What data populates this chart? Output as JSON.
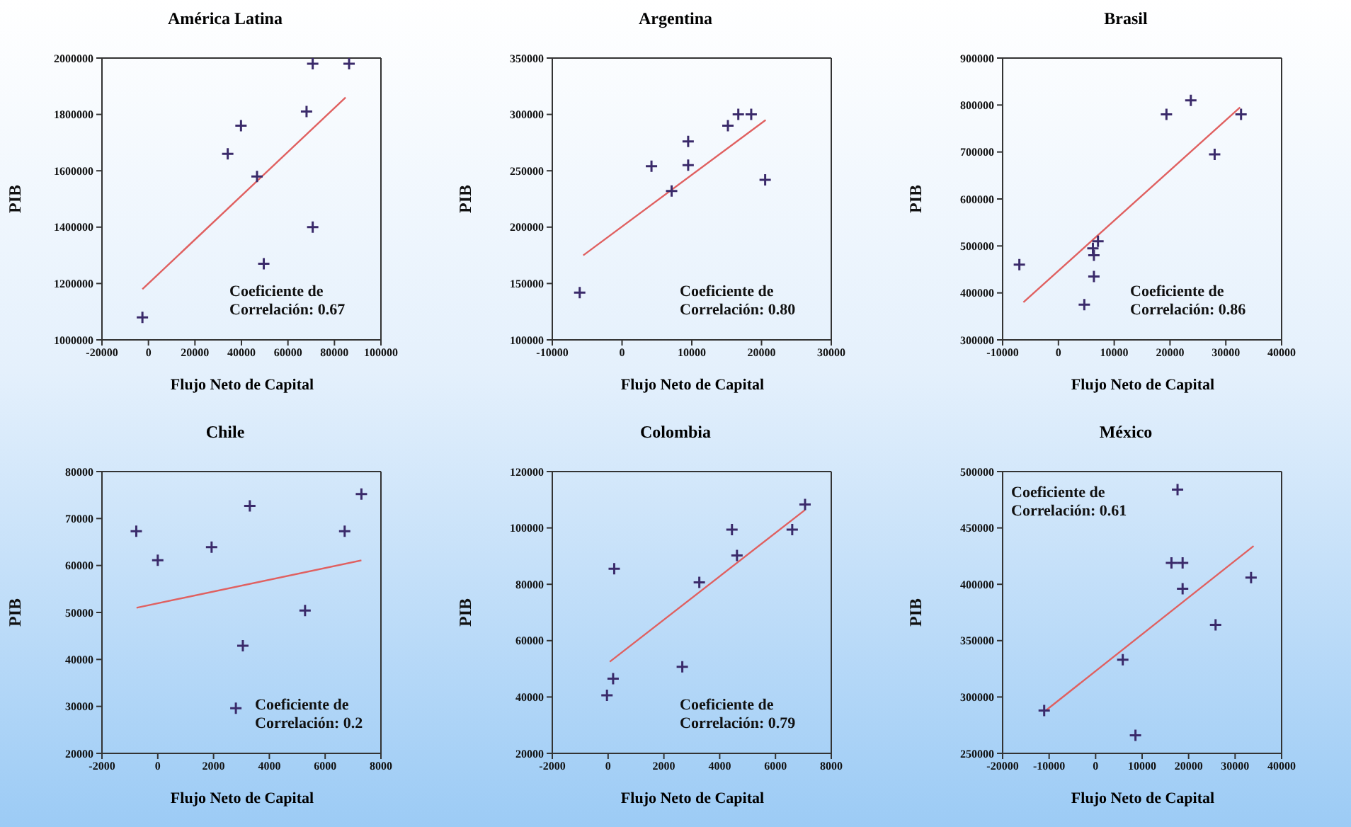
{
  "chart_data": [
    {
      "type": "scatter",
      "title": "América Latina",
      "xlabel": "Flujo Neto de Capital",
      "ylabel": "PIB",
      "xlim": [
        -20000,
        100000
      ],
      "xticks": [
        -20000,
        0,
        20000,
        40000,
        60000,
        80000,
        100000
      ],
      "ylim": [
        1000000,
        2000000
      ],
      "yticks": [
        1000000,
        1200000,
        1400000,
        1600000,
        1800000,
        2000000
      ],
      "annotations": [
        "Coeficiente de Correlación: 0.67"
      ],
      "series": [
        {
          "marker": "cross",
          "color": "#3a2a6a",
          "x": [
            -2600,
            49600,
            70650,
            34100,
            39800,
            46700,
            68000,
            70650,
            86300
          ],
          "values": [
            1080000,
            1270000,
            1400000,
            1660000,
            1760000,
            1580000,
            1810000,
            1980000,
            1980000
          ]
        },
        {
          "type": "line",
          "color": "#e06060",
          "x": [
            -2600,
            84800
          ],
          "values": [
            1180000,
            1860000
          ]
        }
      ]
    },
    {
      "type": "scatter",
      "title": "Argentina",
      "xlabel": "Flujo Neto de Capital",
      "ylabel": "PIB",
      "xlim": [
        -10000,
        30000
      ],
      "xticks": [
        -10000,
        0,
        10000,
        20000,
        30000
      ],
      "ylim": [
        100000,
        350000
      ],
      "yticks": [
        100000,
        150000,
        200000,
        250000,
        300000,
        350000
      ],
      "annotations": [
        "Coeficiente de Correlación: 0.80"
      ],
      "series": [
        {
          "marker": "cross",
          "color": "#3a2a6a",
          "x": [
            -6070,
            4220,
            7110,
            9480,
            9480,
            15180,
            16670,
            18520,
            20520
          ],
          "values": [
            142000,
            254000,
            232000,
            276000,
            255000,
            290000,
            300000,
            300000,
            242000
          ]
        },
        {
          "type": "line",
          "color": "#e06060",
          "x": [
            -5560,
            20590
          ],
          "values": [
            175000,
            295000
          ]
        }
      ]
    },
    {
      "type": "scatter",
      "title": "Brasil",
      "xlabel": "Flujo Neto de Capital",
      "ylabel": "PIB",
      "xlim": [
        -10000,
        40000
      ],
      "xticks": [
        -10000,
        0,
        10000,
        20000,
        30000,
        40000
      ],
      "ylim": [
        300000,
        900000
      ],
      "yticks": [
        300000,
        400000,
        500000,
        600000,
        700000,
        800000,
        900000
      ],
      "annotations": [
        "Coeficiente de Correlación: 0.86"
      ],
      "series": [
        {
          "marker": "cross",
          "color": "#3a2a6a",
          "x": [
            -7000,
            6360,
            7090,
            6180,
            6360,
            4640,
            19360,
            23730,
            28000,
            32730
          ],
          "values": [
            460000,
            480000,
            510000,
            495000,
            435000,
            375000,
            780000,
            810000,
            695000,
            780000
          ]
        },
        {
          "type": "line",
          "color": "#e06060",
          "x": [
            -6270,
            32550
          ],
          "values": [
            380000,
            795000
          ]
        }
      ]
    },
    {
      "type": "scatter",
      "title": "Chile",
      "xlabel": "Flujo Neto de Capital",
      "ylabel": "PIB",
      "xlim": [
        -2000,
        8000
      ],
      "xticks": [
        -2000,
        0,
        2000,
        4000,
        6000,
        8000
      ],
      "ylim": [
        20000,
        80000
      ],
      "yticks": [
        20000,
        30000,
        40000,
        50000,
        60000,
        70000,
        80000
      ],
      "annotations": [
        "Coeficiente de Correlación: 0.2"
      ],
      "series": [
        {
          "marker": "cross",
          "color": "#3a2a6a",
          "x": [
            -770,
            0,
            1930,
            3300,
            3050,
            2800,
            5280,
            6700,
            7300
          ],
          "values": [
            67300,
            61100,
            63900,
            72700,
            42900,
            29600,
            50400,
            67300,
            75200
          ]
        },
        {
          "type": "line",
          "color": "#e06060",
          "x": [
            -760,
            7300
          ],
          "values": [
            51000,
            61100
          ]
        }
      ]
    },
    {
      "type": "scatter",
      "title": "Colombia",
      "xlabel": "Flujo Neto de Capital",
      "ylabel": "PIB",
      "xlim": [
        -2000,
        8000
      ],
      "xticks": [
        -2000,
        0,
        2000,
        4000,
        6000,
        8000
      ],
      "ylim": [
        20000,
        120000
      ],
      "yticks": [
        20000,
        40000,
        60000,
        80000,
        100000,
        120000
      ],
      "annotations": [
        "Coeficiente de Correlación: 0.79"
      ],
      "series": [
        {
          "marker": "cross",
          "color": "#3a2a6a",
          "x": [
            -40,
            180,
            220,
            2660,
            3270,
            4440,
            4620,
            6600,
            7060
          ],
          "values": [
            40600,
            46500,
            85500,
            50700,
            80700,
            99400,
            90200,
            99400,
            108300
          ]
        },
        {
          "type": "line",
          "color": "#e06060",
          "x": [
            60,
            7060
          ],
          "values": [
            52500,
            106400
          ]
        }
      ]
    },
    {
      "type": "scatter",
      "title": "México",
      "xlabel": "Flujo Neto de Capital",
      "ylabel": "PIB",
      "xlim": [
        -20000,
        40000
      ],
      "xticks": [
        -20000,
        -10000,
        0,
        10000,
        20000,
        30000,
        40000
      ],
      "ylim": [
        250000,
        500000
      ],
      "yticks": [
        250000,
        300000,
        350000,
        400000,
        450000,
        500000
      ],
      "annotations": [
        "Coeficiente de Correlación: 0.61"
      ],
      "series": [
        {
          "marker": "cross",
          "color": "#3a2a6a",
          "x": [
            -11060,
            5840,
            8570,
            17620,
            16310,
            18710,
            18710,
            25800,
            33430
          ],
          "values": [
            288000,
            333000,
            266000,
            484000,
            419000,
            419000,
            396000,
            364000,
            406000
          ]
        },
        {
          "type": "line",
          "color": "#e06060",
          "x": [
            -10730,
            33980
          ],
          "values": [
            288000,
            434000
          ]
        }
      ]
    }
  ]
}
